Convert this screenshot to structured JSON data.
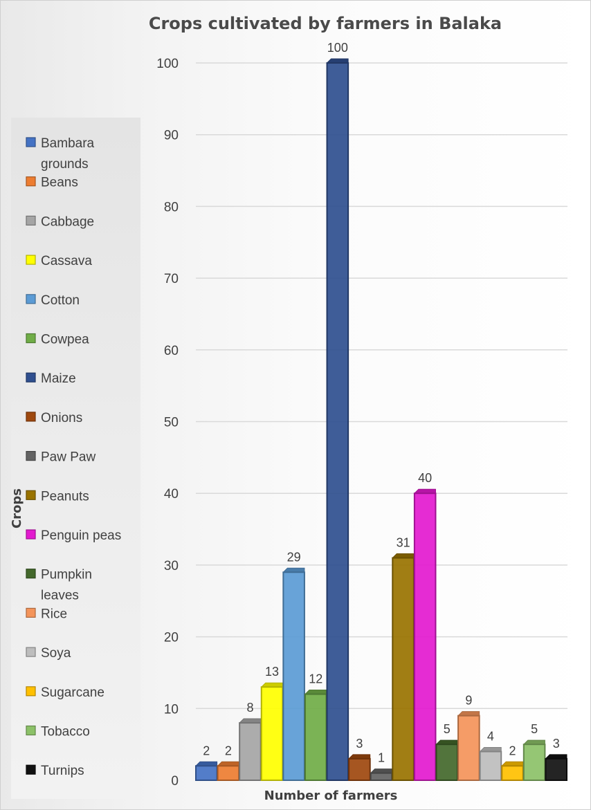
{
  "chart_data": {
    "type": "bar",
    "title": "Crops cultivated by farmers in Balaka",
    "xlabel": "Number of farmers",
    "ylabel": "Crops",
    "ylim": [
      0,
      100
    ],
    "yticks": [
      0,
      10,
      20,
      30,
      40,
      50,
      60,
      70,
      80,
      90,
      100
    ],
    "grid": true,
    "legend_position": "left",
    "data_labels": true,
    "series": [
      {
        "name": "Bambara grounds",
        "legend_lines": [
          "Bambara",
          "grounds"
        ],
        "value": 2,
        "color": "#4472C4"
      },
      {
        "name": "Beans",
        "legend_lines": [
          "Beans"
        ],
        "value": 2,
        "color": "#ED7D31"
      },
      {
        "name": "Cabbage",
        "legend_lines": [
          "Cabbage"
        ],
        "value": 8,
        "color": "#A5A5A5"
      },
      {
        "name": "Cassava",
        "legend_lines": [
          "Cassava"
        ],
        "value": 13,
        "color": "#FFFF00"
      },
      {
        "name": "Cotton",
        "legend_lines": [
          "Cotton"
        ],
        "value": 29,
        "color": "#5B9BD5"
      },
      {
        "name": "Cowpea",
        "legend_lines": [
          "Cowpea"
        ],
        "value": 12,
        "color": "#70AD47"
      },
      {
        "name": "Maize",
        "legend_lines": [
          "Maize"
        ],
        "value": 100,
        "color": "#2F4F8F"
      },
      {
        "name": "Onions",
        "legend_lines": [
          "Onions"
        ],
        "value": 3,
        "color": "#9E480E"
      },
      {
        "name": "Paw Paw",
        "legend_lines": [
          "Paw Paw"
        ],
        "value": 1,
        "color": "#636363"
      },
      {
        "name": "Peanuts",
        "legend_lines": [
          " Peanuts"
        ],
        "value": 31,
        "color": "#997300"
      },
      {
        "name": "Penguin peas",
        "legend_lines": [
          "Penguin peas"
        ],
        "value": 40,
        "color": "#E31ACF"
      },
      {
        "name": "Pumpkin leaves",
        "legend_lines": [
          "Pumpkin",
          "leaves"
        ],
        "value": 5,
        "color": "#43682B"
      },
      {
        "name": "Rice",
        "legend_lines": [
          "Rice"
        ],
        "value": 9,
        "color": "#F4945A"
      },
      {
        "name": "Soya",
        "legend_lines": [
          "Soya"
        ],
        "value": 4,
        "color": "#BDBDBD"
      },
      {
        "name": "Sugarcane",
        "legend_lines": [
          "Sugarcane"
        ],
        "value": 2,
        "color": "#FFC000"
      },
      {
        "name": "Tobacco",
        "legend_lines": [
          "Tobacco"
        ],
        "value": 5,
        "color": "#8CC168"
      },
      {
        "name": "Turnips",
        "legend_lines": [
          "Turnips"
        ],
        "value": 3,
        "color": "#111111"
      }
    ]
  }
}
